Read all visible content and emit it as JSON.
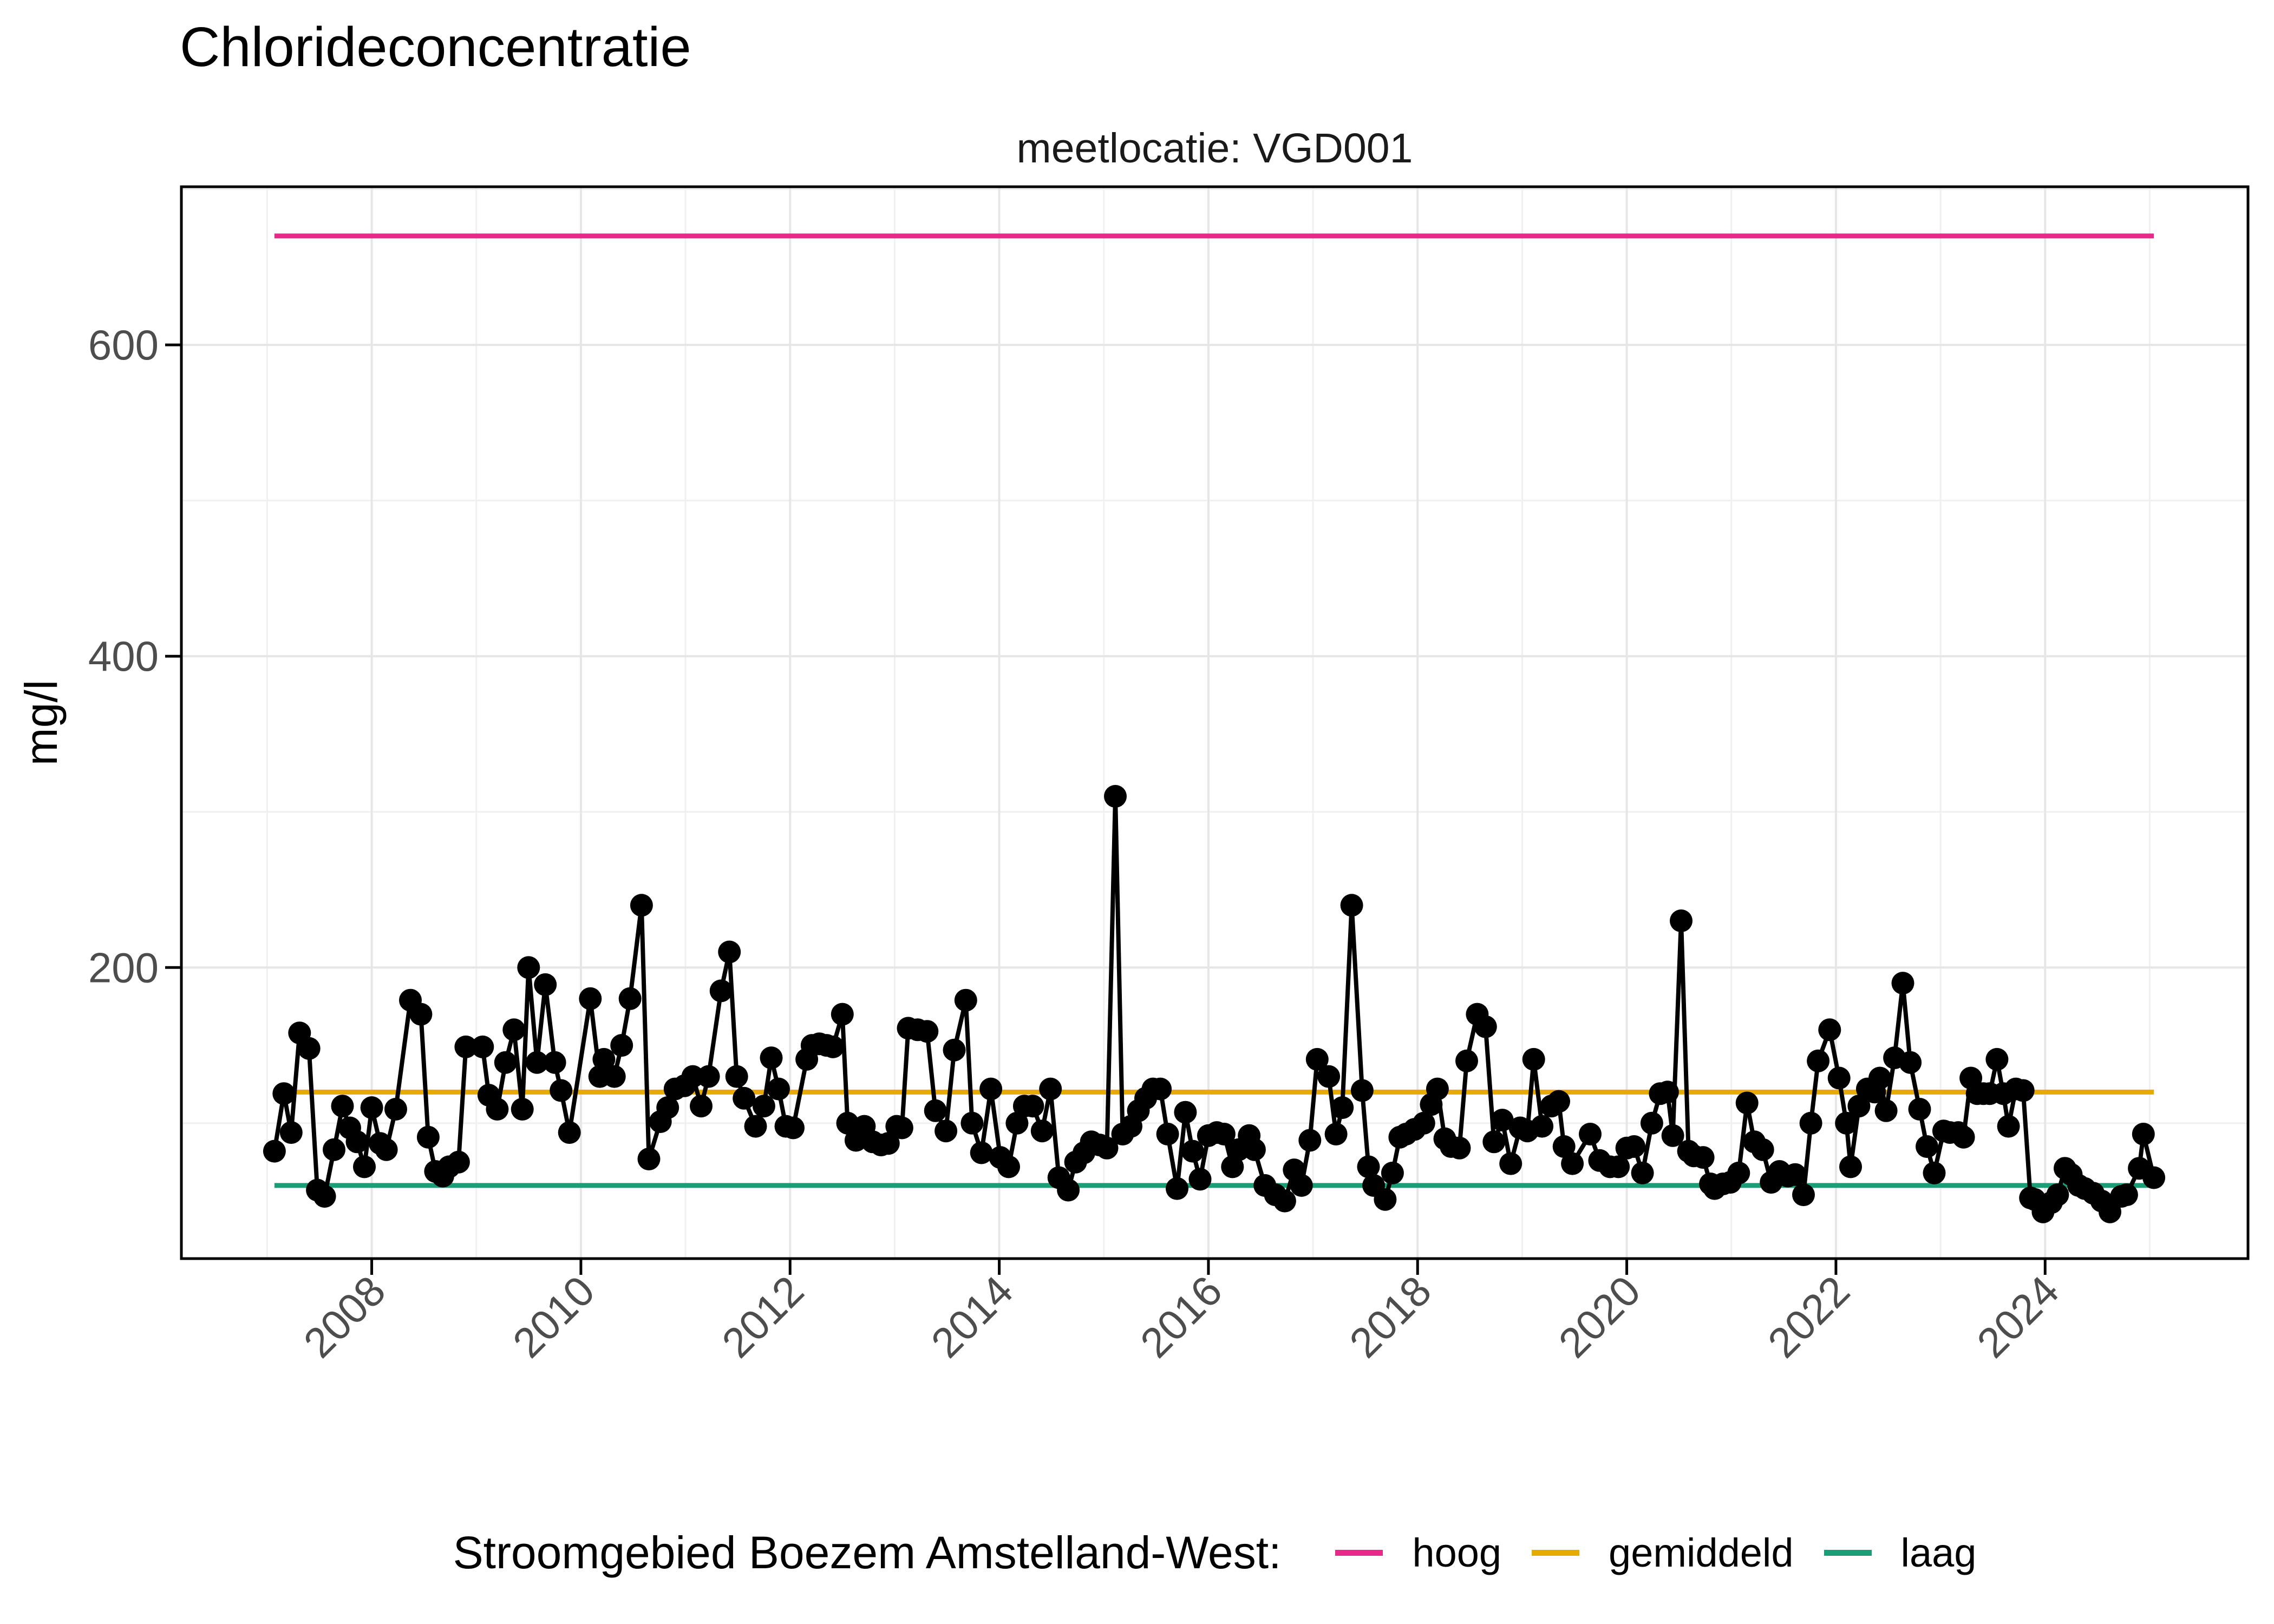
{
  "chart_data": {
    "type": "line",
    "title": "Chlorideconcentratie",
    "facet_label": "meetlocatie: VGD001",
    "xlabel": "",
    "ylabel": "mg/l",
    "xlim": [
      2006.18,
      2025.94
    ],
    "ylim": [
      13,
      701.6
    ],
    "x_major_ticks": [
      2008,
      2010,
      2012,
      2014,
      2016,
      2018,
      2020,
      2022,
      2024
    ],
    "x_minor_ticks": [
      2007,
      2009,
      2011,
      2013,
      2015,
      2017,
      2019,
      2021,
      2023,
      2025
    ],
    "y_major_ticks": [
      200,
      400,
      600
    ],
    "y_minor_ticks": [
      100,
      300,
      500,
      700
    ],
    "grid": true,
    "legend_position": "bottom",
    "legend_title": "Stroomgebied Boezem Amstelland-West:",
    "reference_lines": [
      {
        "name": "hoog",
        "value": 670,
        "color": "#E7298A"
      },
      {
        "name": "gemiddeld",
        "value": 120,
        "color": "#E6AB02"
      },
      {
        "name": "laag",
        "value": 60,
        "color": "#1B9E77"
      }
    ],
    "series": [
      {
        "name": "chlorideconcentratie VGD001",
        "color": "#000000",
        "marker": "point",
        "points": [
          [
            2007.07,
            82
          ],
          [
            2007.16,
            119
          ],
          [
            2007.23,
            94
          ],
          [
            2007.31,
            158
          ],
          [
            2007.4,
            148
          ],
          [
            2007.48,
            57
          ],
          [
            2007.55,
            53
          ],
          [
            2007.64,
            83
          ],
          [
            2007.72,
            111
          ],
          [
            2007.79,
            97
          ],
          [
            2007.86,
            88
          ],
          [
            2007.93,
            72
          ],
          [
            2008.0,
            110
          ],
          [
            2008.08,
            87
          ],
          [
            2008.14,
            83
          ],
          [
            2008.23,
            109
          ],
          [
            2008.37,
            179
          ],
          [
            2008.47,
            170
          ],
          [
            2008.54,
            91
          ],
          [
            2008.61,
            69
          ],
          [
            2008.68,
            66
          ],
          [
            2008.74,
            72
          ],
          [
            2008.83,
            75
          ],
          [
            2008.9,
            149
          ],
          [
            2009.06,
            149
          ],
          [
            2009.12,
            118
          ],
          [
            2009.2,
            109
          ],
          [
            2009.28,
            139
          ],
          [
            2009.36,
            160
          ],
          [
            2009.44,
            109
          ],
          [
            2009.5,
            200
          ],
          [
            2009.58,
            139
          ],
          [
            2009.66,
            189
          ],
          [
            2009.75,
            139
          ],
          [
            2009.81,
            121
          ],
          [
            2009.89,
            94
          ],
          [
            2010.09,
            180
          ],
          [
            2010.18,
            130
          ],
          [
            2010.22,
            141
          ],
          [
            2010.32,
            130
          ],
          [
            2010.39,
            150
          ],
          [
            2010.47,
            180
          ],
          [
            2010.58,
            240
          ],
          [
            2010.65,
            77
          ],
          [
            2010.76,
            101
          ],
          [
            2010.83,
            110
          ],
          [
            2010.9,
            122
          ],
          [
            2010.99,
            124
          ],
          [
            2011.07,
            130
          ],
          [
            2011.15,
            111
          ],
          [
            2011.22,
            130
          ],
          [
            2011.34,
            185
          ],
          [
            2011.42,
            210
          ],
          [
            2011.49,
            130
          ],
          [
            2011.56,
            116
          ],
          [
            2011.67,
            98
          ],
          [
            2011.75,
            111
          ],
          [
            2011.82,
            142
          ],
          [
            2011.89,
            122
          ],
          [
            2011.96,
            98
          ],
          [
            2012.03,
            97
          ],
          [
            2012.16,
            141
          ],
          [
            2012.21,
            150
          ],
          [
            2012.28,
            151
          ],
          [
            2012.35,
            150
          ],
          [
            2012.41,
            149
          ],
          [
            2012.5,
            170
          ],
          [
            2012.55,
            100
          ],
          [
            2012.63,
            89
          ],
          [
            2012.71,
            98
          ],
          [
            2012.79,
            88
          ],
          [
            2012.87,
            86
          ],
          [
            2012.94,
            87
          ],
          [
            2013.02,
            98
          ],
          [
            2013.07,
            97
          ],
          [
            2013.13,
            161
          ],
          [
            2013.22,
            160
          ],
          [
            2013.31,
            159
          ],
          [
            2013.39,
            108
          ],
          [
            2013.49,
            95
          ],
          [
            2013.57,
            147
          ],
          [
            2013.68,
            179
          ],
          [
            2013.74,
            100
          ],
          [
            2013.83,
            81
          ],
          [
            2013.92,
            122
          ],
          [
            2014.01,
            78
          ],
          [
            2014.09,
            72
          ],
          [
            2014.17,
            100
          ],
          [
            2014.24,
            111
          ],
          [
            2014.32,
            111
          ],
          [
            2014.41,
            95
          ],
          [
            2014.49,
            122
          ],
          [
            2014.57,
            65
          ],
          [
            2014.66,
            57
          ],
          [
            2014.73,
            75
          ],
          [
            2014.81,
            81
          ],
          [
            2014.88,
            88
          ],
          [
            2014.96,
            86
          ],
          [
            2015.03,
            84
          ],
          [
            2015.11,
            310
          ],
          [
            2015.18,
            93
          ],
          [
            2015.26,
            98
          ],
          [
            2015.33,
            108
          ],
          [
            2015.4,
            116
          ],
          [
            2015.47,
            122
          ],
          [
            2015.54,
            122
          ],
          [
            2015.61,
            93
          ],
          [
            2015.7,
            58
          ],
          [
            2015.78,
            107
          ],
          [
            2015.85,
            82
          ],
          [
            2015.92,
            64
          ],
          [
            2016.0,
            92
          ],
          [
            2016.08,
            94
          ],
          [
            2016.15,
            93
          ],
          [
            2016.23,
            72
          ],
          [
            2016.29,
            83
          ],
          [
            2016.39,
            92
          ],
          [
            2016.44,
            83
          ],
          [
            2016.54,
            60
          ],
          [
            2016.64,
            54
          ],
          [
            2016.73,
            50
          ],
          [
            2016.82,
            70
          ],
          [
            2016.89,
            60
          ],
          [
            2016.97,
            89
          ],
          [
            2017.04,
            141
          ],
          [
            2017.15,
            130
          ],
          [
            2017.22,
            93
          ],
          [
            2017.28,
            110
          ],
          [
            2017.37,
            240
          ],
          [
            2017.47,
            121
          ],
          [
            2017.53,
            72
          ],
          [
            2017.58,
            60
          ],
          [
            2017.69,
            51
          ],
          [
            2017.76,
            68
          ],
          [
            2017.83,
            91
          ],
          [
            2017.89,
            93
          ],
          [
            2017.97,
            96
          ],
          [
            2018.06,
            100
          ],
          [
            2018.13,
            112
          ],
          [
            2018.19,
            122
          ],
          [
            2018.26,
            90
          ],
          [
            2018.32,
            85
          ],
          [
            2018.4,
            84
          ],
          [
            2018.47,
            140
          ],
          [
            2018.57,
            170
          ],
          [
            2018.65,
            162
          ],
          [
            2018.73,
            88
          ],
          [
            2018.81,
            102
          ],
          [
            2018.89,
            74
          ],
          [
            2018.98,
            97
          ],
          [
            2019.05,
            95
          ],
          [
            2019.11,
            141
          ],
          [
            2019.19,
            98
          ],
          [
            2019.28,
            111
          ],
          [
            2019.35,
            114
          ],
          [
            2019.4,
            85
          ],
          [
            2019.48,
            74
          ],
          [
            2019.65,
            93
          ],
          [
            2019.74,
            76
          ],
          [
            2019.84,
            72
          ],
          [
            2019.92,
            72
          ],
          [
            2020.0,
            84
          ],
          [
            2020.07,
            85
          ],
          [
            2020.15,
            68
          ],
          [
            2020.24,
            100
          ],
          [
            2020.32,
            119
          ],
          [
            2020.39,
            120
          ],
          [
            2020.44,
            92
          ],
          [
            2020.52,
            230
          ],
          [
            2020.59,
            82
          ],
          [
            2020.64,
            79
          ],
          [
            2020.73,
            78
          ],
          [
            2020.8,
            61
          ],
          [
            2020.84,
            58
          ],
          [
            2020.92,
            61
          ],
          [
            2020.99,
            62
          ],
          [
            2021.07,
            68
          ],
          [
            2021.15,
            113
          ],
          [
            2021.22,
            88
          ],
          [
            2021.3,
            83
          ],
          [
            2021.38,
            62
          ],
          [
            2021.46,
            69
          ],
          [
            2021.54,
            66
          ],
          [
            2021.61,
            67
          ],
          [
            2021.69,
            54
          ],
          [
            2021.76,
            100
          ],
          [
            2021.83,
            140
          ],
          [
            2021.94,
            160
          ],
          [
            2022.03,
            129
          ],
          [
            2022.1,
            100
          ],
          [
            2022.14,
            72
          ],
          [
            2022.22,
            111
          ],
          [
            2022.3,
            122
          ],
          [
            2022.37,
            120
          ],
          [
            2022.42,
            129
          ],
          [
            2022.48,
            108
          ],
          [
            2022.56,
            142
          ],
          [
            2022.64,
            190
          ],
          [
            2022.71,
            139
          ],
          [
            2022.8,
            109
          ],
          [
            2022.87,
            85
          ],
          [
            2022.94,
            68
          ],
          [
            2023.03,
            95
          ],
          [
            2023.09,
            94
          ],
          [
            2023.17,
            94
          ],
          [
            2023.22,
            91
          ],
          [
            2023.29,
            129
          ],
          [
            2023.35,
            119
          ],
          [
            2023.41,
            119
          ],
          [
            2023.47,
            119
          ],
          [
            2023.54,
            141
          ],
          [
            2023.6,
            119
          ],
          [
            2023.65,
            98
          ],
          [
            2023.72,
            122
          ],
          [
            2023.79,
            121
          ],
          [
            2023.86,
            52
          ],
          [
            2023.9,
            51
          ],
          [
            2023.98,
            43
          ],
          [
            2024.06,
            49
          ],
          [
            2024.12,
            54
          ],
          [
            2024.19,
            71
          ],
          [
            2024.25,
            67
          ],
          [
            2024.32,
            60
          ],
          [
            2024.38,
            58
          ],
          [
            2024.46,
            55
          ],
          [
            2024.54,
            50
          ],
          [
            2024.62,
            43
          ],
          [
            2024.73,
            53
          ],
          [
            2024.78,
            54
          ],
          [
            2024.9,
            71
          ],
          [
            2024.94,
            93
          ],
          [
            2025.04,
            65
          ]
        ]
      }
    ],
    "colors": {
      "series": "#000000",
      "hoog": "#E7298A",
      "gemiddeld": "#E6AB02",
      "laag": "#1B9E77",
      "grid_major": "#E6E6E6",
      "grid_minor": "#F0F0F0",
      "axis_text": "#4D4D4D",
      "panel_border": "#000000",
      "background": "#FFFFFF"
    }
  }
}
